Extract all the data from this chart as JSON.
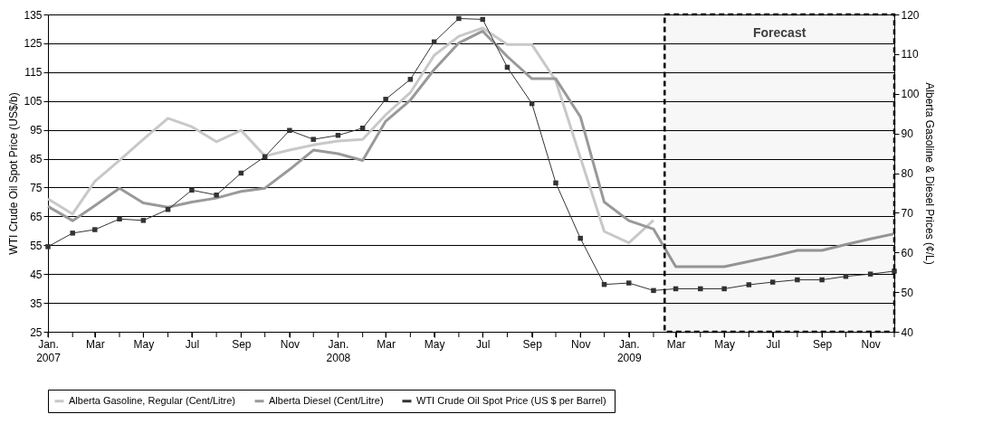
{
  "chart_data": {
    "type": "line",
    "x": [
      "2007-01",
      "2007-02",
      "2007-03",
      "2007-04",
      "2007-05",
      "2007-06",
      "2007-07",
      "2007-08",
      "2007-09",
      "2007-10",
      "2007-11",
      "2007-12",
      "2008-01",
      "2008-02",
      "2008-03",
      "2008-04",
      "2008-05",
      "2008-06",
      "2008-07",
      "2008-08",
      "2008-09",
      "2008-10",
      "2008-11",
      "2008-12",
      "2009-01",
      "2009-02",
      "2009-03",
      "2009-04",
      "2009-05",
      "2009-06",
      "2009-07",
      "2009-08",
      "2009-09",
      "2009-10",
      "2009-11",
      "2009-12"
    ],
    "xlim": [
      "2007-01",
      "2009-12"
    ],
    "xticks": [
      {
        "value": "2007-01",
        "label": "Jan. 2007"
      },
      {
        "value": "2007-02",
        "label": null
      },
      {
        "value": "2007-03",
        "label": "Mar"
      },
      {
        "value": "2007-04",
        "label": null
      },
      {
        "value": "2007-05",
        "label": "May"
      },
      {
        "value": "2007-06",
        "label": null
      },
      {
        "value": "2007-07",
        "label": "Jul"
      },
      {
        "value": "2007-08",
        "label": null
      },
      {
        "value": "2007-09",
        "label": "Sep"
      },
      {
        "value": "2007-10",
        "label": null
      },
      {
        "value": "2007-11",
        "label": "Nov"
      },
      {
        "value": "2007-12",
        "label": null
      },
      {
        "value": "2008-01",
        "label": "Jan. 2008"
      },
      {
        "value": "2008-02",
        "label": null
      },
      {
        "value": "2008-03",
        "label": "Mar"
      },
      {
        "value": "2008-04",
        "label": null
      },
      {
        "value": "2008-05",
        "label": "May"
      },
      {
        "value": "2008-06",
        "label": null
      },
      {
        "value": "2008-07",
        "label": "Jul"
      },
      {
        "value": "2008-08",
        "label": null
      },
      {
        "value": "2008-09",
        "label": "Sep"
      },
      {
        "value": "2008-10",
        "label": null
      },
      {
        "value": "2008-11",
        "label": "Nov"
      },
      {
        "value": "2008-12",
        "label": null
      },
      {
        "value": "2009-01",
        "label": "Jan. 2009"
      },
      {
        "value": "2009-02",
        "label": null
      },
      {
        "value": "2009-03",
        "label": "Mar"
      },
      {
        "value": "2009-04",
        "label": null
      },
      {
        "value": "2009-05",
        "label": "May"
      },
      {
        "value": "2009-06",
        "label": null
      },
      {
        "value": "2009-07",
        "label": "Jul"
      },
      {
        "value": "2009-08",
        "label": null
      },
      {
        "value": "2009-09",
        "label": "Sep"
      },
      {
        "value": "2009-10",
        "label": null
      },
      {
        "value": "2009-11",
        "label": "Nov"
      },
      {
        "value": "2009-12",
        "label": null
      }
    ],
    "ylabel": "WTI Crude Oil Spot Price (US$/b)",
    "y2label": "Alberta Gasoline & Diesel Prices (¢/L)",
    "ylim": [
      25,
      135
    ],
    "yticks": [
      25,
      35,
      45,
      55,
      65,
      75,
      85,
      95,
      105,
      115,
      125,
      135
    ],
    "y2lim": [
      40,
      120
    ],
    "y2ticks": [
      40,
      50,
      60,
      70,
      80,
      90,
      100,
      110,
      120
    ],
    "grid": "y",
    "legend": "bottom",
    "bands": [
      {
        "axis": "x",
        "from": "2009-02-15",
        "to": "2009-12",
        "label": "Forecast",
        "color": "#000000"
      }
    ],
    "series": [
      {
        "name": "Alberta Gasoline, Regular (Cent/Litre)",
        "color": "#c8c8c8",
        "axis": "y2",
        "marker": "none",
        "values": [
          73.5,
          69.7,
          77.9,
          83.2,
          88.5,
          93.8,
          91.7,
          87.9,
          90.8,
          84.3,
          85.8,
          87.1,
          88.1,
          88.5,
          94.7,
          100.3,
          109.7,
          114.5,
          116.6,
          112.4,
          112.4,
          103.3,
          83.9,
          65.3,
          62.4,
          68.1,
          null,
          null,
          null,
          null,
          null,
          null,
          null,
          null,
          null,
          null
        ]
      },
      {
        "name": "Alberta Diesel (Cent/Litre)",
        "color": "#999999",
        "axis": "y2",
        "marker": "none",
        "values": [
          71.6,
          68.0,
          71.8,
          76.2,
          72.5,
          71.4,
          72.7,
          73.7,
          75.4,
          76.2,
          80.9,
          85.8,
          84.9,
          83.2,
          93.1,
          98.4,
          106.1,
          112.8,
          115.8,
          109.4,
          103.8,
          103.8,
          94.2,
          72.7,
          68.0,
          65.9,
          56.4,
          56.4,
          56.4,
          57.7,
          59.0,
          60.5,
          60.5,
          62.0,
          63.4,
          64.7
        ]
      },
      {
        "name": "WTI Crude Oil Spot Price  (US $ per Barrel)",
        "color": "#333333",
        "axis": "y",
        "marker": "square",
        "values": [
          54.5,
          59.2,
          60.4,
          64.1,
          63.6,
          67.4,
          74.1,
          72.4,
          80.0,
          85.7,
          94.8,
          91.7,
          93.1,
          95.6,
          105.6,
          112.5,
          125.5,
          133.6,
          133.3,
          116.7,
          104.1,
          76.6,
          57.4,
          41.4,
          41.9,
          39.3,
          39.9,
          39.9,
          39.9,
          41.3,
          42.2,
          43.0,
          43.0,
          44.2,
          45.0,
          46.0
        ]
      }
    ]
  }
}
